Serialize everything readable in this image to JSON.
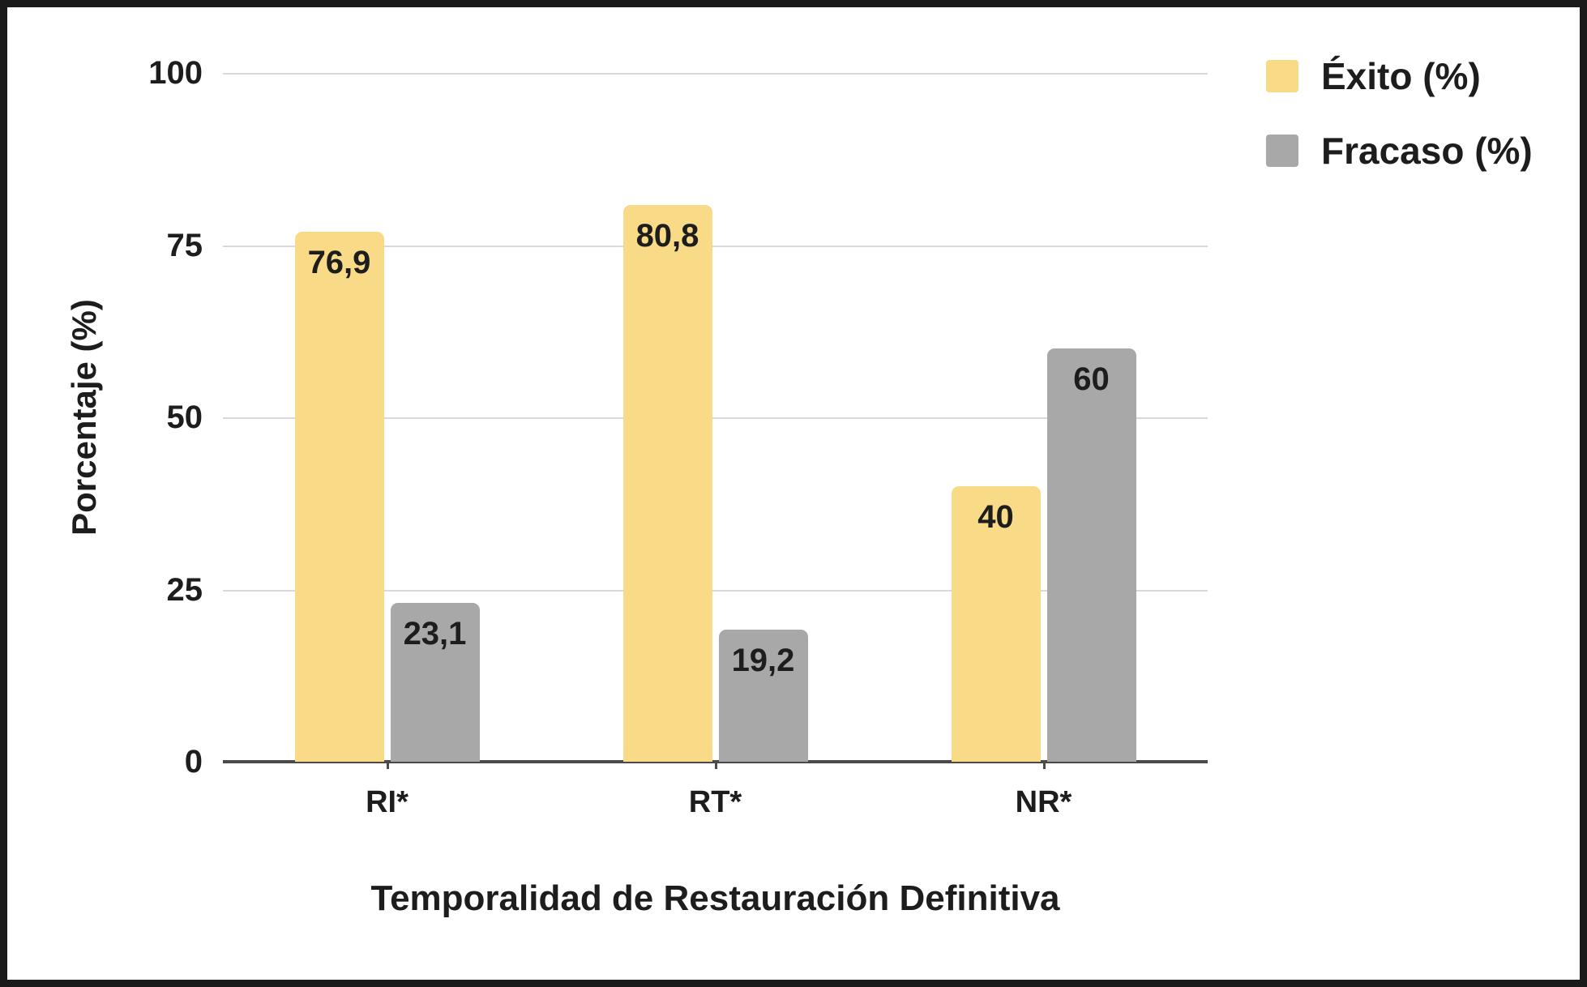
{
  "figure": {
    "background": "#ffffff",
    "frame_color": "#1a1a1a"
  },
  "chart_data": {
    "type": "bar",
    "title": "",
    "categories": [
      "RI*",
      "RT*",
      "NR*"
    ],
    "series": [
      {
        "name": "Éxito (%)",
        "color": "#F8DA87",
        "values": [
          76.9,
          80.8,
          40
        ],
        "labels": [
          "76,9",
          "80,8",
          "40"
        ]
      },
      {
        "name": "Fracaso (%)",
        "color": "#A8A8A8",
        "values": [
          23.1,
          19.2,
          60
        ],
        "labels": [
          "23,1",
          "19,2",
          "60"
        ]
      }
    ],
    "xlabel": "Temporalidad de Restauración Definitiva",
    "ylabel": "Porcentaje (%)",
    "ylim": [
      0,
      100
    ],
    "yticks": [
      0,
      25,
      50,
      75,
      100
    ],
    "grid": true,
    "legend_position": "top-right",
    "axis_color": "#4a4a4a",
    "gridline_color": "#d9d9d9",
    "text_color": "#1d1d1d"
  }
}
